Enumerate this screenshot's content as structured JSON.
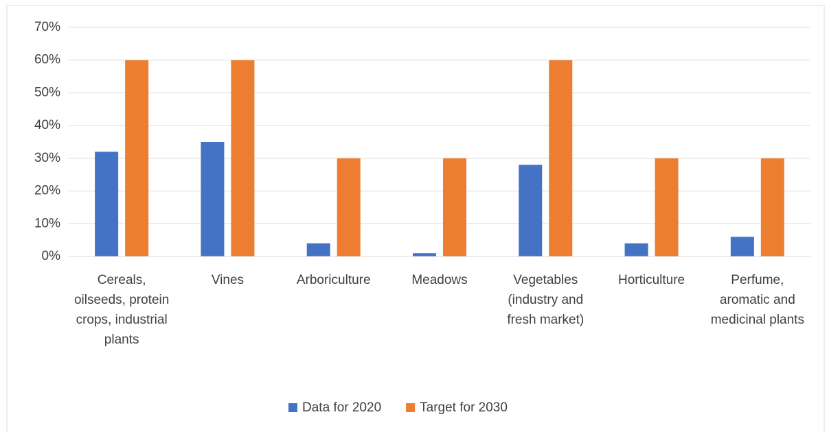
{
  "chart_data": {
    "type": "bar",
    "categories": [
      "Cereals, oilseeds, protein crops, industrial plants",
      "Vines",
      "Arboriculture",
      "Meadows",
      "Vegetables (industry and fresh market)",
      "Horticulture",
      "Perfume, aromatic and medicinal plants"
    ],
    "series": [
      {
        "name": "Data for 2020",
        "color": "#4472c4",
        "values": [
          32,
          35,
          4,
          1,
          28,
          4,
          6
        ]
      },
      {
        "name": "Target for 2030",
        "color": "#ed7d31",
        "values": [
          60,
          60,
          30,
          30,
          60,
          30,
          30
        ]
      }
    ],
    "ylim": [
      0,
      70
    ],
    "yticks": [
      {
        "value": 0,
        "label": "0%"
      },
      {
        "value": 10,
        "label": "10%"
      },
      {
        "value": 20,
        "label": "20%"
      },
      {
        "value": 30,
        "label": "30%"
      },
      {
        "value": 40,
        "label": "40%"
      },
      {
        "value": 50,
        "label": "50%"
      },
      {
        "value": 60,
        "label": "60%"
      },
      {
        "value": 70,
        "label": "70%"
      }
    ],
    "grid": true,
    "legend": "bottom"
  }
}
